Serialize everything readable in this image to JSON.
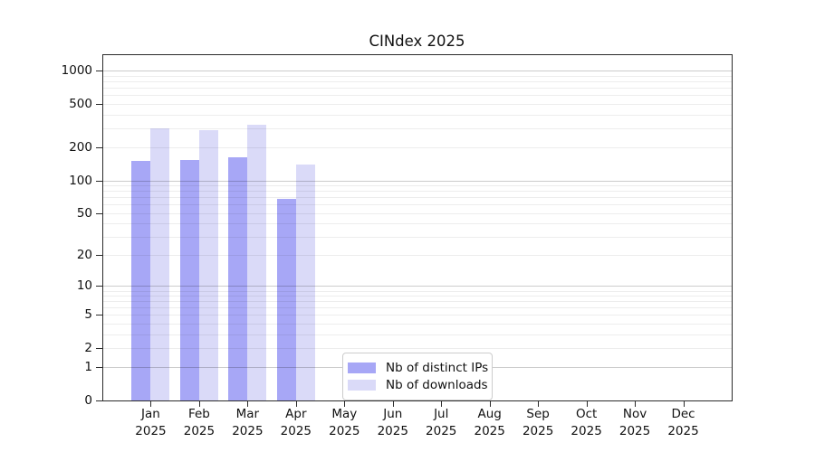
{
  "chart_data": {
    "type": "bar",
    "title": "CINdex 2025",
    "categories": [
      "Jan",
      "Feb",
      "Mar",
      "Apr",
      "May",
      "Jun",
      "Jul",
      "Aug",
      "Sep",
      "Oct",
      "Nov",
      "Dec"
    ],
    "x_tick_year": "2025",
    "series": [
      {
        "name": "Nb of distinct IPs",
        "color": "#a7a7f6",
        "values": [
          150,
          155,
          162,
          68,
          null,
          null,
          null,
          null,
          null,
          null,
          null,
          null
        ]
      },
      {
        "name": "Nb of downloads",
        "color": "#dadaf8",
        "values": [
          300,
          290,
          325,
          140,
          null,
          null,
          null,
          null,
          null,
          null,
          null,
          null
        ]
      }
    ],
    "y_ticks": [
      0,
      1,
      2,
      5,
      10,
      20,
      50,
      100,
      200,
      500,
      1000
    ],
    "y_scale": "log1p",
    "ylim": [
      0,
      1420
    ],
    "xlabel": "",
    "ylabel": "",
    "grid": "horizontal",
    "legend_position": "lower center"
  },
  "colors": {
    "background": "#ffffff",
    "frame": "#2b2b2b",
    "text": "#111111",
    "major_grid": "#c9c9c9",
    "minor_grid": "#ececec",
    "legend_border": "#cccccc"
  }
}
